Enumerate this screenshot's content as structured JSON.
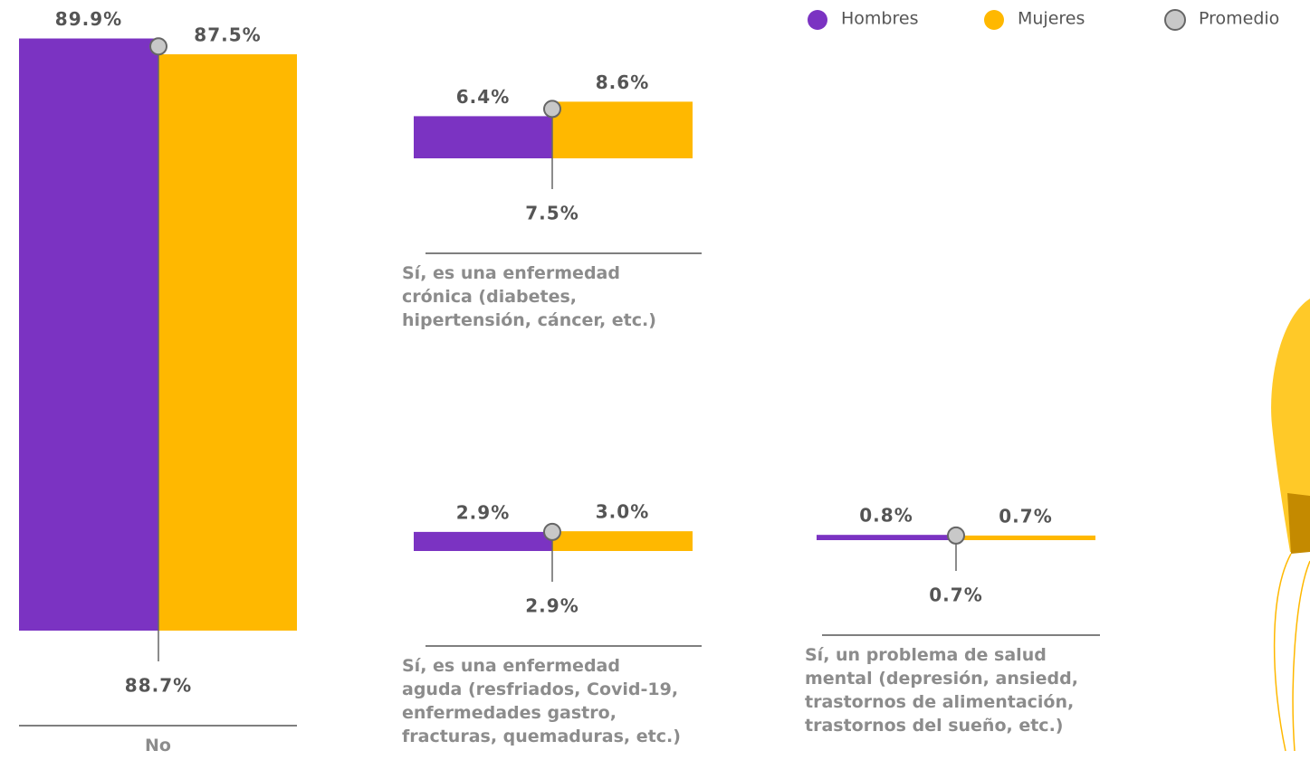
{
  "chart_data": {
    "type": "bar",
    "categories": [
      "No",
      "Sí, es una enfermedad\ncrónica (diabetes,\nhipertensión, cáncer, etc.)",
      "Sí, es una enfermedad\naguda (resfriados, Covid-19,\nenfermedades gastro,\nfracturas, quemaduras, etc.)",
      "Sí, un problema de salud\nmental (depresión, ansiedd,\ntrastornos de alimentación,\ntrastornos del sueño, etc.)"
    ],
    "series": [
      {
        "name": "Hombres",
        "color": "#7b33c2",
        "values": [
          89.9,
          6.4,
          2.9,
          0.8
        ],
        "value_labels": [
          "89.9%",
          "6.4%",
          "2.9%",
          "0.8%"
        ]
      },
      {
        "name": "Mujeres",
        "color": "#ffb800",
        "values": [
          87.5,
          8.6,
          3.0,
          0.7
        ],
        "value_labels": [
          "87.5%",
          "8.6%",
          "3.0%",
          "0.7%"
        ]
      },
      {
        "name": "Promedio",
        "color": "#c8c8c8",
        "values": [
          88.7,
          7.5,
          2.9,
          0.7
        ],
        "value_labels": [
          "88.7%",
          "7.5%",
          "2.9%",
          "0.7%"
        ]
      }
    ]
  }
}
